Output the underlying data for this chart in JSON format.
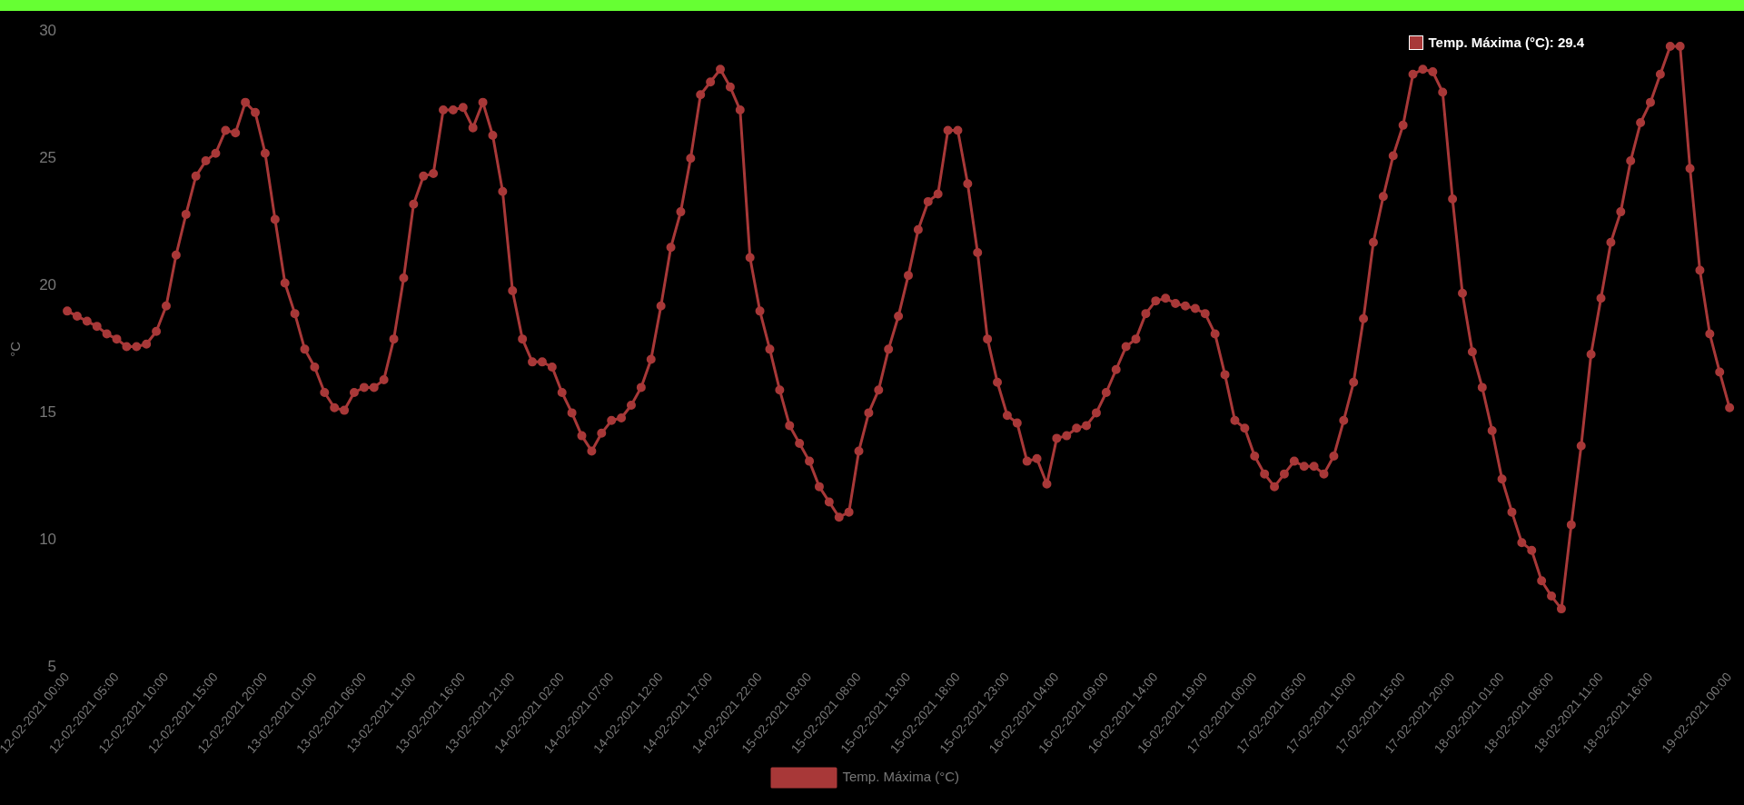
{
  "chart_data": {
    "type": "line",
    "ylabel": "°C",
    "ylim": [
      5,
      30
    ],
    "yticks": [
      5,
      10,
      15,
      20,
      25,
      30
    ],
    "grid": false,
    "legend": "bottom",
    "marker": "circle",
    "line_style": "solid",
    "annotations": [
      "Temp. Máxima (°C): 29.4"
    ],
    "categories": [
      "12-02-2021 00:00",
      null,
      null,
      null,
      null,
      "12-02-2021 05:00",
      null,
      null,
      null,
      null,
      "12-02-2021 10:00",
      null,
      null,
      null,
      null,
      "12-02-2021 15:00",
      null,
      null,
      null,
      null,
      "12-02-2021 20:00",
      null,
      null,
      null,
      null,
      "13-02-2021 01:00",
      null,
      null,
      null,
      null,
      "13-02-2021 06:00",
      null,
      null,
      null,
      null,
      "13-02-2021 11:00",
      null,
      null,
      null,
      null,
      "13-02-2021 16:00",
      null,
      null,
      null,
      null,
      "13-02-2021 21:00",
      null,
      null,
      null,
      null,
      "14-02-2021 02:00",
      null,
      null,
      null,
      null,
      "14-02-2021 07:00",
      null,
      null,
      null,
      null,
      "14-02-2021 12:00",
      null,
      null,
      null,
      null,
      "14-02-2021 17:00",
      null,
      null,
      null,
      null,
      "14-02-2021 22:00",
      null,
      null,
      null,
      null,
      "15-02-2021 03:00",
      null,
      null,
      null,
      null,
      "15-02-2021 08:00",
      null,
      null,
      null,
      null,
      "15-02-2021 13:00",
      null,
      null,
      null,
      null,
      "15-02-2021 18:00",
      null,
      null,
      null,
      null,
      "15-02-2021 23:00",
      null,
      null,
      null,
      null,
      "16-02-2021 04:00",
      null,
      null,
      null,
      null,
      "16-02-2021 09:00",
      null,
      null,
      null,
      null,
      "16-02-2021 14:00",
      null,
      null,
      null,
      null,
      "16-02-2021 19:00",
      null,
      null,
      null,
      null,
      "17-02-2021 00:00",
      null,
      null,
      null,
      null,
      "17-02-2021 05:00",
      null,
      null,
      null,
      null,
      "17-02-2021 10:00",
      null,
      null,
      null,
      null,
      "17-02-2021 15:00",
      null,
      null,
      null,
      null,
      "17-02-2021 20:00",
      null,
      null,
      null,
      null,
      "18-02-2021 01:00",
      null,
      null,
      null,
      null,
      "18-02-2021 06:00",
      null,
      null,
      null,
      null,
      "18-02-2021 11:00",
      null,
      null,
      null,
      null,
      "18-02-2021 16:00",
      null,
      null,
      null,
      null,
      null,
      null,
      null,
      "19-02-2021 00:00"
    ],
    "series": [
      {
        "name": "Temp. Máxima (°C)",
        "color": "#a83838",
        "values": [
          19.0,
          18.8,
          18.6,
          18.4,
          18.1,
          17.9,
          17.6,
          17.6,
          17.7,
          18.2,
          19.2,
          21.2,
          22.8,
          24.3,
          24.9,
          25.2,
          26.1,
          26.0,
          27.2,
          26.8,
          25.2,
          22.6,
          20.1,
          18.9,
          17.5,
          16.8,
          15.8,
          15.2,
          15.1,
          15.8,
          16.0,
          16.0,
          16.3,
          17.9,
          20.3,
          23.2,
          24.3,
          24.4,
          26.9,
          26.9,
          27.0,
          26.2,
          27.2,
          25.9,
          23.7,
          19.8,
          17.9,
          17.0,
          17.0,
          16.8,
          15.8,
          15.0,
          14.1,
          13.5,
          14.2,
          14.7,
          14.8,
          15.3,
          16.0,
          17.1,
          19.2,
          21.5,
          22.9,
          25.0,
          27.5,
          28.0,
          28.5,
          27.8,
          26.9,
          21.1,
          19.0,
          17.5,
          15.9,
          14.5,
          13.8,
          13.1,
          12.1,
          11.5,
          10.9,
          11.1,
          13.5,
          15.0,
          15.9,
          17.5,
          18.8,
          20.4,
          22.2,
          23.3,
          23.6,
          26.1,
          26.1,
          24.0,
          21.3,
          17.9,
          16.2,
          14.9,
          14.6,
          13.1,
          13.2,
          12.2,
          14.0,
          14.1,
          14.4,
          14.5,
          15.0,
          15.8,
          16.7,
          17.6,
          17.9,
          18.9,
          19.4,
          19.5,
          19.3,
          19.2,
          19.1,
          18.9,
          18.1,
          16.5,
          14.7,
          14.4,
          13.3,
          12.6,
          12.1,
          12.6,
          13.1,
          12.9,
          12.9,
          12.6,
          13.3,
          14.7,
          16.2,
          18.7,
          21.7,
          23.5,
          25.1,
          26.3,
          28.3,
          28.5,
          28.4,
          27.6,
          23.4,
          19.7,
          17.4,
          16.0,
          14.3,
          12.4,
          11.1,
          9.9,
          9.6,
          8.4,
          7.8,
          7.3,
          10.6,
          13.7,
          17.3,
          19.5,
          21.7,
          22.9,
          24.9,
          26.4,
          27.2,
          28.3,
          29.4,
          29.4,
          24.6,
          20.6,
          18.1,
          16.6,
          15.2
        ]
      }
    ]
  }
}
